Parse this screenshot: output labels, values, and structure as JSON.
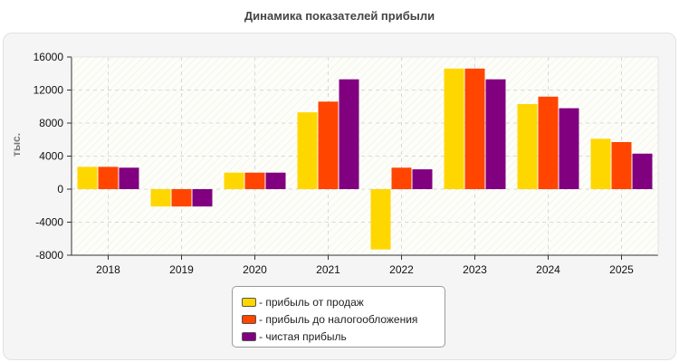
{
  "chart_data": {
    "type": "bar",
    "title": "Динамика показателей прибыли",
    "ylabel": "тыс.",
    "xlabel": "",
    "ylim": [
      -8000,
      16000
    ],
    "yticks": [
      -8000,
      -4000,
      0,
      4000,
      8000,
      12000,
      16000
    ],
    "ytick_labels": [
      "-8000",
      "-4000",
      "0",
      "4000",
      "8000",
      "12000",
      "16000"
    ],
    "grid": true,
    "legend_position": "bottom-center",
    "categories": [
      "2018",
      "2019",
      "2020",
      "2021",
      "2022",
      "2023",
      "2024",
      "2025"
    ],
    "series": [
      {
        "name": "- прибыль от продаж",
        "color": "#ffd700",
        "values": [
          2700,
          -2100,
          2000,
          9300,
          -7300,
          14600,
          10300,
          6100
        ]
      },
      {
        "name": "- прибыль до налогообложения",
        "color": "#ff4500",
        "values": [
          2700,
          -2100,
          2000,
          10600,
          2600,
          14600,
          11200,
          5700
        ]
      },
      {
        "name": "- чистая прибыль",
        "color": "#800080",
        "values": [
          2600,
          -2100,
          2000,
          13300,
          2400,
          13300,
          9800,
          4300
        ]
      }
    ]
  }
}
